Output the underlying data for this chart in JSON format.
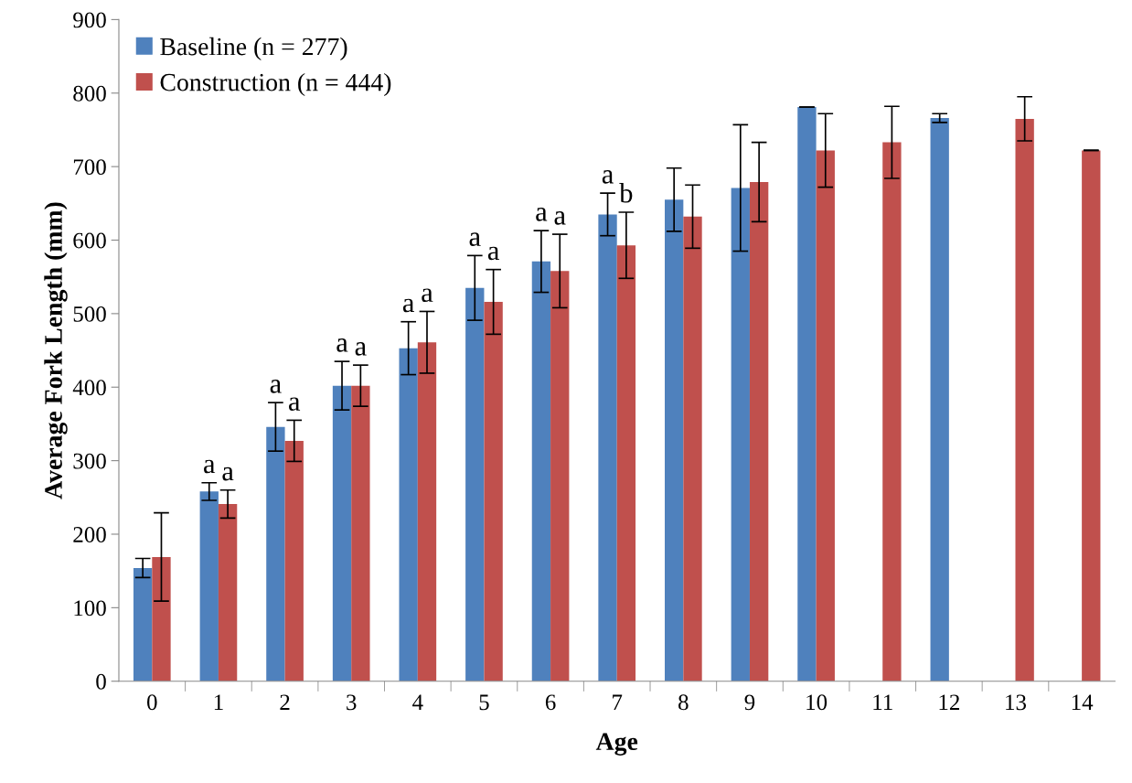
{
  "chart_data": {
    "type": "bar",
    "xlabel": "Age",
    "ylabel": "Average Fork Length (mm)",
    "categories": [
      "0",
      "1",
      "2",
      "3",
      "4",
      "5",
      "6",
      "7",
      "8",
      "9",
      "10",
      "11",
      "12",
      "13",
      "14"
    ],
    "series": [
      {
        "name": "Baseline (n = 277)",
        "color": "#4f81bd",
        "values": [
          154,
          258,
          346,
          402,
          453,
          535,
          571,
          635,
          655,
          671,
          781,
          null,
          766,
          null,
          null
        ],
        "errors": [
          13,
          12,
          33,
          33,
          36,
          44,
          42,
          29,
          43,
          86,
          0,
          null,
          6,
          null,
          null
        ]
      },
      {
        "name": "Construction (n = 444)",
        "color": "#c0504d",
        "values": [
          169,
          241,
          327,
          402,
          461,
          516,
          558,
          593,
          632,
          679,
          722,
          733,
          null,
          765,
          722
        ],
        "errors": [
          60,
          19,
          28,
          28,
          42,
          44,
          50,
          45,
          43,
          54,
          50,
          49,
          null,
          30,
          0
        ]
      }
    ],
    "ylim": [
      0,
      900
    ],
    "yticks": [
      0,
      100,
      200,
      300,
      400,
      500,
      600,
      700,
      800,
      900
    ],
    "legend": "top left",
    "grid": false,
    "annotations": [
      {
        "text": "a",
        "x": "1",
        "y": 270
      },
      {
        "text": "a",
        "x": "1",
        "y": 260
      },
      {
        "text": "a",
        "x": "2",
        "y": 379
      },
      {
        "text": "a",
        "x": "2",
        "y": 355
      },
      {
        "text": "a",
        "x": "3",
        "y": 435
      },
      {
        "text": "a",
        "x": "3",
        "y": 430
      },
      {
        "text": "a",
        "x": "4",
        "y": 489
      },
      {
        "text": "a",
        "x": "4",
        "y": 503
      },
      {
        "text": "a",
        "x": "5",
        "y": 579
      },
      {
        "text": "a",
        "x": "5",
        "y": 560
      },
      {
        "text": "a",
        "x": "6",
        "y": 613
      },
      {
        "text": "a",
        "x": "6",
        "y": 608
      },
      {
        "text": "a",
        "x": "7",
        "y": 664
      },
      {
        "text": "b",
        "x": "7",
        "y": 638
      }
    ]
  }
}
